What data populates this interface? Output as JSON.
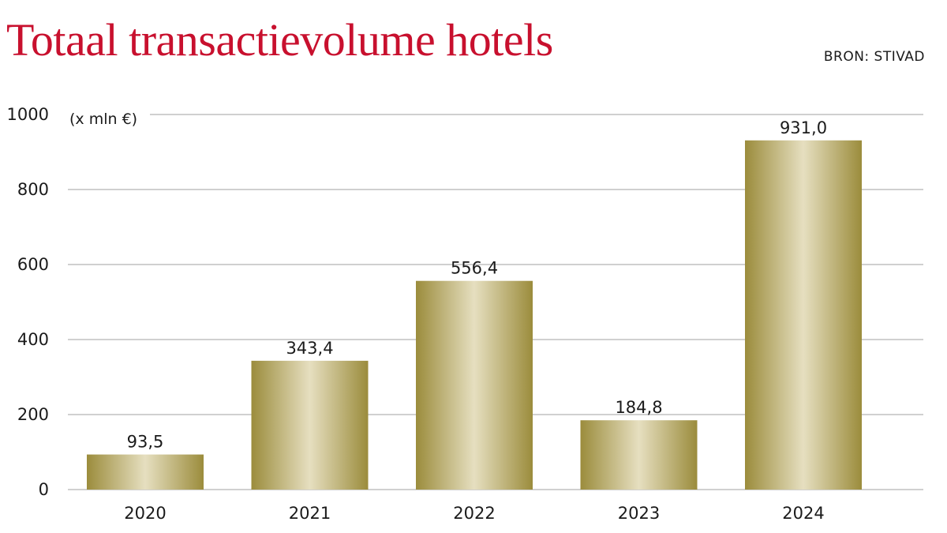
{
  "header": {
    "title": "Totaal transactievolume hotels",
    "source": "BRON: STIVAD"
  },
  "colors": {
    "title": "#c8102e",
    "bar_dark": "#9b8c3c",
    "bar_light": "#e6dfc0",
    "grid": "#b5b5b5"
  },
  "chart_data": {
    "type": "bar",
    "title": "Totaal transactievolume hotels",
    "unit_label": "(x mln €)",
    "categories": [
      "2020",
      "2021",
      "2022",
      "2023",
      "2024"
    ],
    "values": [
      93.5,
      343.4,
      556.4,
      184.8,
      931.0
    ],
    "value_labels": [
      "93,5",
      "343,4",
      "556,4",
      "184,8",
      "931,0"
    ],
    "yticks": [
      0,
      200,
      400,
      600,
      800,
      1000
    ],
    "ylim": [
      0,
      1000
    ],
    "grid": true,
    "legend": "none"
  }
}
